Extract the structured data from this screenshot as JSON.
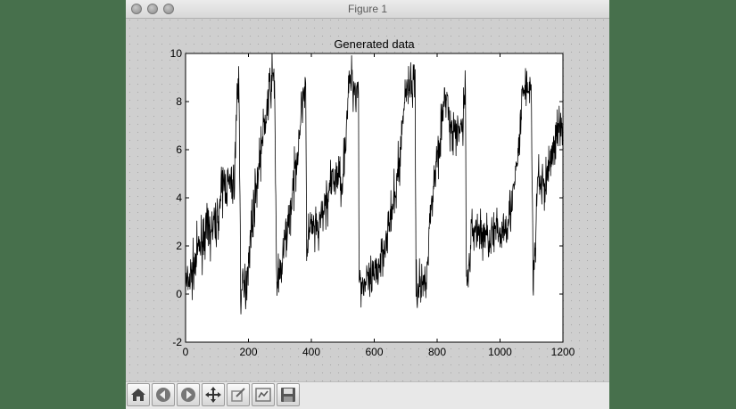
{
  "window": {
    "title": "Figure 1"
  },
  "toolbar": {
    "buttons": [
      {
        "name": "home-icon"
      },
      {
        "name": "back-icon"
      },
      {
        "name": "forward-icon"
      },
      {
        "name": "pan-icon"
      },
      {
        "name": "zoom-icon"
      },
      {
        "name": "subplots-icon"
      },
      {
        "name": "save-icon"
      }
    ]
  },
  "chart_data": {
    "type": "line",
    "title": "Generated data",
    "xlabel": "",
    "ylabel": "",
    "xlim": [
      0,
      1200
    ],
    "ylim": [
      -2,
      10
    ],
    "xticks": [
      0,
      200,
      400,
      600,
      800,
      1000,
      1200
    ],
    "yticks": [
      -2,
      0,
      2,
      4,
      6,
      8,
      10
    ],
    "grid": false,
    "line_color": "#000000",
    "series": [
      {
        "noise": 0.5,
        "x": [
          0,
          20,
          40,
          60,
          80,
          100,
          120,
          140,
          155,
          163,
          170,
          175,
          190,
          200,
          210,
          225,
          240,
          260,
          275,
          283,
          290,
          293,
          300,
          320,
          340,
          360,
          375,
          382,
          385,
          390,
          400,
          420,
          440,
          460,
          480,
          500,
          510,
          520,
          525,
          530,
          540,
          550,
          552,
          560,
          580,
          600,
          620,
          640,
          660,
          680,
          700,
          710,
          730,
          733,
          740,
          760,
          770,
          780,
          800,
          820,
          830,
          840,
          860,
          880,
          890,
          893,
          900,
          910,
          920,
          940,
          960,
          980,
          1000,
          1020,
          1040,
          1060,
          1070,
          1078,
          1085,
          1100,
          1105,
          1110,
          1120,
          1140,
          1160,
          1180,
          1200
        ],
        "y": [
          0.3,
          0.8,
          1.8,
          2.5,
          2.6,
          3.0,
          4.6,
          4.5,
          4.6,
          8.0,
          9.0,
          0.2,
          0.2,
          1.5,
          2.8,
          4.5,
          6.0,
          7.8,
          9.0,
          8.8,
          0.3,
          0.6,
          0.6,
          2.5,
          4.0,
          6.5,
          8.5,
          8.7,
          1.2,
          2.6,
          2.7,
          2.5,
          3.5,
          4.4,
          4.9,
          4.8,
          6.8,
          8.6,
          9.0,
          8.8,
          8.5,
          8.6,
          0.5,
          0.5,
          0.4,
          0.6,
          1.5,
          2.5,
          3.5,
          5.5,
          8.6,
          8.7,
          8.7,
          0.3,
          0.3,
          0.5,
          1.5,
          3.5,
          5.8,
          7.5,
          8.5,
          6.8,
          6.5,
          7.0,
          8.7,
          0.3,
          1.0,
          2.5,
          2.8,
          2.5,
          2.4,
          2.5,
          2.5,
          3.0,
          3.8,
          6.0,
          8.0,
          8.7,
          8.6,
          8.4,
          0.3,
          1.0,
          5.0,
          4.3,
          5.6,
          6.6,
          7.2
        ]
      }
    ]
  }
}
